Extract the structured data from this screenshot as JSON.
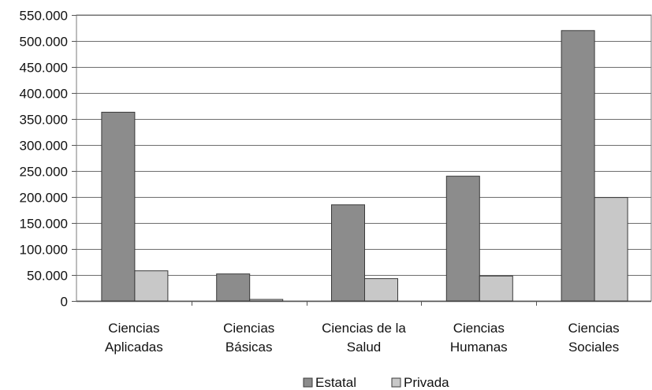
{
  "chart_data": {
    "type": "bar",
    "title": "",
    "xlabel": "",
    "ylabel": "",
    "categories": [
      [
        "Ciencias",
        "Aplicadas"
      ],
      [
        "Ciencias",
        "Básicas"
      ],
      [
        "Ciencias de la",
        "Salud"
      ],
      [
        "Ciencias",
        "Humanas"
      ],
      [
        "Ciencias",
        "Sociales"
      ]
    ],
    "series": [
      {
        "name": "Estatal",
        "color": "#8c8c8c",
        "values": [
          363000,
          52000,
          185000,
          240000,
          520000
        ]
      },
      {
        "name": "Privada",
        "color": "#c8c8c8",
        "values": [
          58000,
          3000,
          43000,
          48000,
          199000
        ]
      }
    ],
    "ylim": [
      0,
      550000
    ],
    "yticks": [
      0,
      50000,
      100000,
      150000,
      200000,
      250000,
      300000,
      350000,
      400000,
      450000,
      500000,
      550000
    ],
    "ytick_labels": [
      "0",
      "50.000",
      "100.000",
      "150.000",
      "200.000",
      "250.000",
      "300.000",
      "350.000",
      "400.000",
      "450.000",
      "500.000",
      "550.000"
    ],
    "grid": true,
    "legend_position": "bottom"
  }
}
